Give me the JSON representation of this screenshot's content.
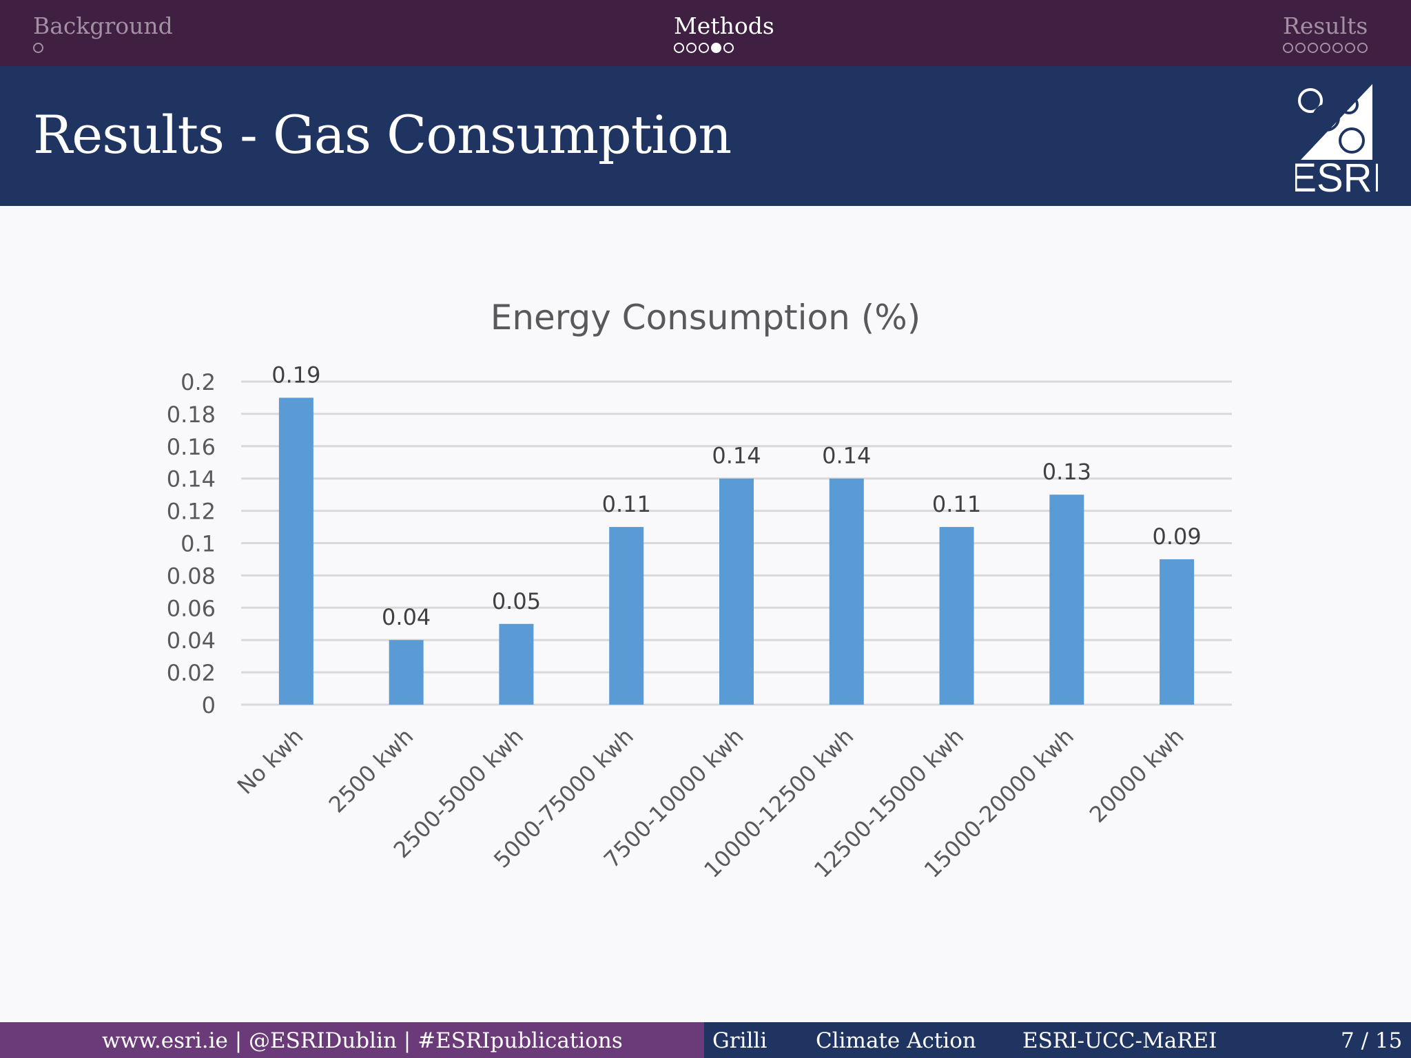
{
  "nav": {
    "sections": [
      {
        "label": "Background",
        "dots": 1,
        "filled_index": -1,
        "active": false
      },
      {
        "label": "Methods",
        "dots": 5,
        "filled_index": 3,
        "active": true
      },
      {
        "label": "Results",
        "dots": 7,
        "filled_index": -1,
        "active": false
      }
    ]
  },
  "header": {
    "title": "Results - Gas Consumption",
    "logo_text": "ESRI"
  },
  "chart_data": {
    "type": "bar",
    "title": "Energy Consumption (%)",
    "categories": [
      "No kwh",
      "2500 kwh",
      "2500-5000 kwh",
      "5000-75000 kwh",
      "7500-10000 kwh",
      "10000-12500 kwh",
      "12500-15000 kwh",
      "15000-20000 kwh",
      "20000 kwh"
    ],
    "values": [
      0.19,
      0.04,
      0.05,
      0.11,
      0.14,
      0.14,
      0.11,
      0.13,
      0.09
    ],
    "data_labels": [
      "0.19",
      "0.04",
      "0.05",
      "0.11",
      "0.14",
      "0.14",
      "0.11",
      "0.13",
      "0.09"
    ],
    "y_ticks": [
      "0",
      "0.02",
      "0.04",
      "0.06",
      "0.08",
      "0.1",
      "0.12",
      "0.14",
      "0.16",
      "0.18",
      "0.2"
    ],
    "ylim": [
      0,
      0.2
    ],
    "grid": true,
    "legend": false,
    "bar_color": "#5b9bd5"
  },
  "footer": {
    "links": "www.esri.ie | @ESRIDublin | #ESRIpublications",
    "author": "Grilli",
    "short_title": "Climate Action",
    "institute": "ESRI-UCC-MaREI",
    "page": "7 / 15"
  },
  "colors": {
    "topbar": "#3f1f42",
    "title_band": "#1f3460",
    "footer_left": "#6b3a78",
    "footer_right": "#1f3460"
  }
}
